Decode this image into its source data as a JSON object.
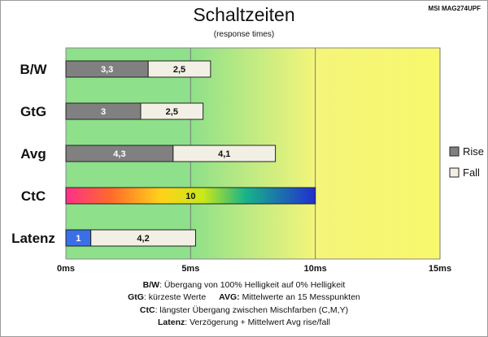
{
  "header": {
    "title": "Schaltzeiten",
    "subtitle": "(response times)",
    "model": "MSI MAG274UPF"
  },
  "chart_data": {
    "type": "bar",
    "orientation": "horizontal",
    "stacked": true,
    "categories": [
      "B/W",
      "GtG",
      "Avg",
      "CtC",
      "Latenz"
    ],
    "series": [
      {
        "name": "Rise",
        "values": [
          3.3,
          3,
          4.3,
          10,
          1
        ],
        "labels": [
          "3,3",
          "3",
          "4,3",
          "10",
          "1"
        ],
        "color": "#808080"
      },
      {
        "name": "Fall",
        "values": [
          2.5,
          2.5,
          4.1,
          0,
          4.2
        ],
        "labels": [
          "2,5",
          "2,5",
          "4,1",
          "",
          "4,2"
        ],
        "color": "#f2efe4"
      }
    ],
    "special_colors": {
      "CtC": "rainbow gradient",
      "Latenz": "#3b6fe8"
    },
    "x_axis": {
      "unit": "ms",
      "ticks": [
        0,
        5,
        10,
        15
      ],
      "tick_labels": [
        "0ms",
        "5ms",
        "10ms",
        "15ms"
      ],
      "xlim": [
        0,
        15
      ]
    },
    "background_zones": [
      {
        "from": 0,
        "to": 5,
        "color": "#8ee08a"
      },
      {
        "from": 5,
        "to": 10,
        "color": "gradient green to yellow"
      },
      {
        "from": 10,
        "to": 15,
        "color": "#f7f77a"
      }
    ],
    "legend": {
      "position": "right",
      "entries": [
        "Rise",
        "Fall"
      ]
    },
    "grid": true
  },
  "notes": {
    "bw_key": "B/W",
    "bw_text": ":  Übergang von 100% Helligkeit auf 0% Helligkeit",
    "gtg_key": "GtG",
    "gtg_text": ": kürzeste  Werte",
    "avg_key": "AVG:",
    "avg_text": " Mittelwerte  an 15 Messpunkten",
    "ctc_key": "CtC",
    "ctc_text": ": längster Übergang  zwischen Mischfarben (C,M,Y)",
    "lat_key": "Latenz",
    "lat_text": ": Verzögerung  + Mittelwert  Avg rise/fall"
  }
}
